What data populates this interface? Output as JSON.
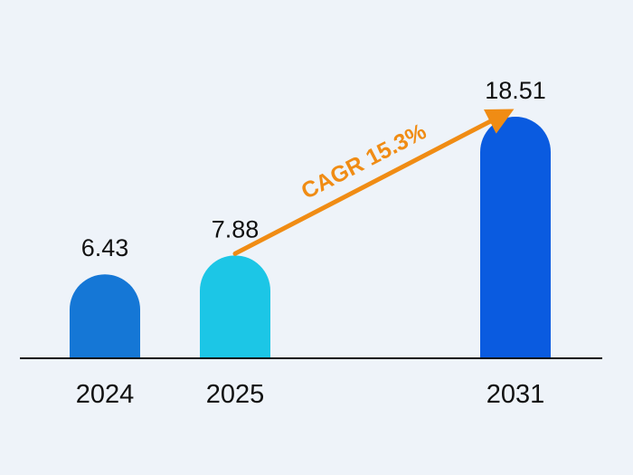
{
  "chart_data": {
    "type": "bar",
    "categories": [
      "2024",
      "2025",
      "2031"
    ],
    "values": [
      6.43,
      7.88,
      18.51
    ],
    "value_labels": [
      "6.43",
      "7.88",
      "18.51"
    ],
    "bar_colors": [
      "#1577d6",
      "#1cc6e6",
      "#0a5be0"
    ],
    "baseline_color": "#111111",
    "ylim": [
      0,
      18.51
    ],
    "grid": false,
    "annotation": {
      "text": "CAGR 15.3%",
      "color": "#f08c14",
      "from_category": "2025",
      "to_category": "2031"
    }
  }
}
